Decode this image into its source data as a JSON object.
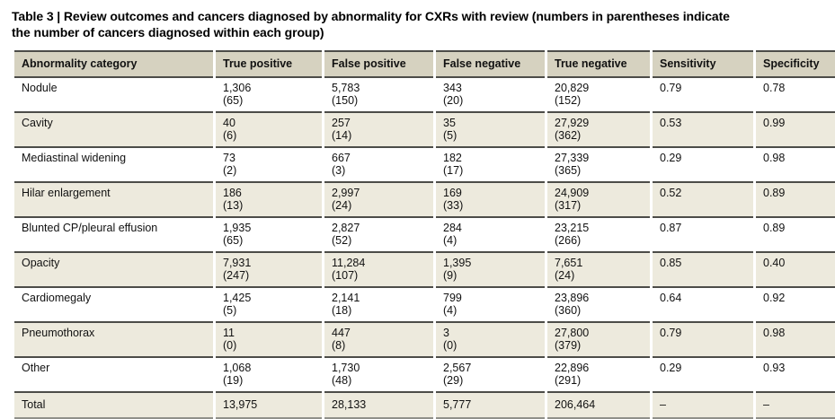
{
  "title": {
    "line1": "Table 3 | Review outcomes and cancers diagnosed by abnormality for CXRs with review (numbers in parentheses indicate",
    "line2": "the number of cancers diagnosed within each group)"
  },
  "colors": {
    "header_bg": "#d6d2c0",
    "shaded_row_bg": "#edeadd",
    "rule": "#4c4c48",
    "bottom_rule": "#90908a",
    "text": "#111111",
    "page_bg": "#ffffff"
  },
  "table": {
    "columns": [
      "Abnormality category",
      "True positive",
      "False positive",
      "False negative",
      "True negative",
      "Sensitivity",
      "Specificity"
    ],
    "rows": [
      {
        "category": "Nodule",
        "cells": [
          {
            "value": "1,306",
            "cancers": "(65)"
          },
          {
            "value": "5,783",
            "cancers": "(150)"
          },
          {
            "value": "343",
            "cancers": "(20)"
          },
          {
            "value": "20,829",
            "cancers": "(152)"
          },
          {
            "value": "0.79"
          },
          {
            "value": "0.78"
          }
        ]
      },
      {
        "category": "Cavity",
        "cells": [
          {
            "value": "40",
            "cancers": "(6)"
          },
          {
            "value": "257",
            "cancers": "(14)"
          },
          {
            "value": "35",
            "cancers": "(5)"
          },
          {
            "value": "27,929",
            "cancers": "(362)"
          },
          {
            "value": "0.53"
          },
          {
            "value": "0.99"
          }
        ]
      },
      {
        "category": "Mediastinal widening",
        "cells": [
          {
            "value": "73",
            "cancers": "(2)"
          },
          {
            "value": "667",
            "cancers": "(3)"
          },
          {
            "value": "182",
            "cancers": "(17)"
          },
          {
            "value": "27,339",
            "cancers": "(365)"
          },
          {
            "value": "0.29"
          },
          {
            "value": "0.98"
          }
        ]
      },
      {
        "category": "Hilar enlargement",
        "cells": [
          {
            "value": "186",
            "cancers": "(13)"
          },
          {
            "value": "2,997",
            "cancers": "(24)"
          },
          {
            "value": "169",
            "cancers": "(33)"
          },
          {
            "value": "24,909",
            "cancers": "(317)"
          },
          {
            "value": "0.52"
          },
          {
            "value": "0.89"
          }
        ]
      },
      {
        "category": "Blunted CP/pleural effusion",
        "cells": [
          {
            "value": "1,935",
            "cancers": "(65)"
          },
          {
            "value": "2,827",
            "cancers": "(52)"
          },
          {
            "value": "284",
            "cancers": "(4)"
          },
          {
            "value": "23,215",
            "cancers": "(266)"
          },
          {
            "value": "0.87"
          },
          {
            "value": "0.89"
          }
        ]
      },
      {
        "category": "Opacity",
        "cells": [
          {
            "value": "7,931",
            "cancers": "(247)"
          },
          {
            "value": "11,284",
            "cancers": "(107)"
          },
          {
            "value": "1,395",
            "cancers": "(9)"
          },
          {
            "value": "7,651",
            "cancers": "(24)"
          },
          {
            "value": "0.85"
          },
          {
            "value": "0.40"
          }
        ]
      },
      {
        "category": "Cardiomegaly",
        "cells": [
          {
            "value": "1,425",
            "cancers": "(5)"
          },
          {
            "value": "2,141",
            "cancers": "(18)"
          },
          {
            "value": "799",
            "cancers": "(4)"
          },
          {
            "value": "23,896",
            "cancers": "(360)"
          },
          {
            "value": "0.64"
          },
          {
            "value": "0.92"
          }
        ]
      },
      {
        "category": "Pneumothorax",
        "cells": [
          {
            "value": "11",
            "cancers": "(0)"
          },
          {
            "value": "447",
            "cancers": "(8)"
          },
          {
            "value": "3",
            "cancers": "(0)"
          },
          {
            "value": "27,800",
            "cancers": "(379)"
          },
          {
            "value": "0.79"
          },
          {
            "value": "0.98"
          }
        ]
      },
      {
        "category": "Other",
        "cells": [
          {
            "value": "1,068",
            "cancers": "(19)"
          },
          {
            "value": "1,730",
            "cancers": "(48)"
          },
          {
            "value": "2,567",
            "cancers": "(29)"
          },
          {
            "value": "22,896",
            "cancers": "(291)"
          },
          {
            "value": "0.29"
          },
          {
            "value": "0.93"
          }
        ]
      },
      {
        "category": "Total",
        "cells": [
          {
            "value": "13,975"
          },
          {
            "value": "28,133"
          },
          {
            "value": "5,777"
          },
          {
            "value": "206,464"
          },
          {
            "value": "–"
          },
          {
            "value": "–"
          }
        ]
      }
    ]
  }
}
